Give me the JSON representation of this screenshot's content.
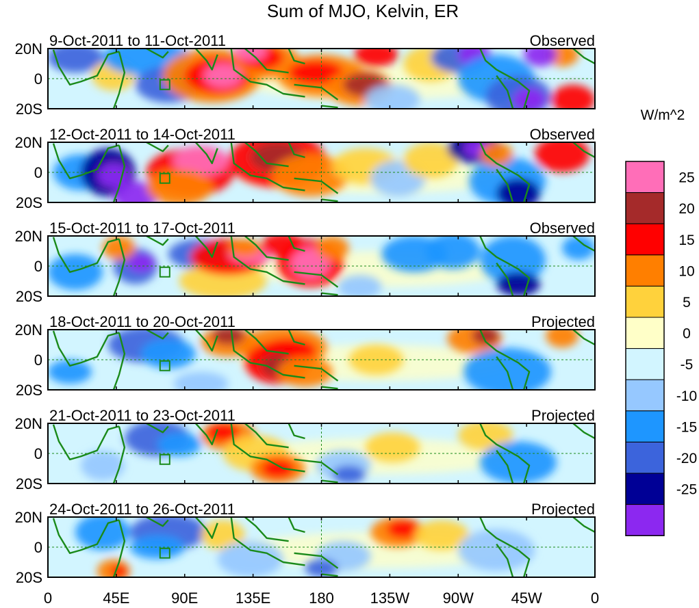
{
  "title": "Sum of MJO, Kelvin, ER",
  "units_label": "W/m^2",
  "lat_labels": [
    "20N",
    "0",
    "20S"
  ],
  "lon_labels": [
    "0",
    "45E",
    "90E",
    "135E",
    "180",
    "135W",
    "90W",
    "45W",
    "0"
  ],
  "panels": [
    {
      "date_range": "9-Oct-2011 to 11-Oct-2011",
      "status": "Observed"
    },
    {
      "date_range": "12-Oct-2011 to 14-Oct-2011",
      "status": "Observed"
    },
    {
      "date_range": "15-Oct-2011 to 17-Oct-2011",
      "status": "Observed"
    },
    {
      "date_range": "18-Oct-2011 to 20-Oct-2011",
      "status": "Projected"
    },
    {
      "date_range": "21-Oct-2011 to 23-Oct-2011",
      "status": "Projected"
    },
    {
      "date_range": "24-Oct-2011 to 26-Oct-2011",
      "status": "Projected"
    }
  ],
  "colorbar": {
    "tick_labels": [
      "25",
      "20",
      "15",
      "10",
      "5",
      "0",
      "-5",
      "-10",
      "-15",
      "-20",
      "-25"
    ],
    "colors": [
      "#ff6eb8",
      "#a52a2a",
      "#ff0000",
      "#ff7f00",
      "#ffd23c",
      "#ffffc8",
      "#d2f5ff",
      "#96c8ff",
      "#1e96ff",
      "#3c64dc",
      "#000096",
      "#8c28f0"
    ]
  },
  "colors": {
    "coast": "#1a8a1a",
    "frame": "#000000",
    "background_field": "#d2f5ff"
  }
}
